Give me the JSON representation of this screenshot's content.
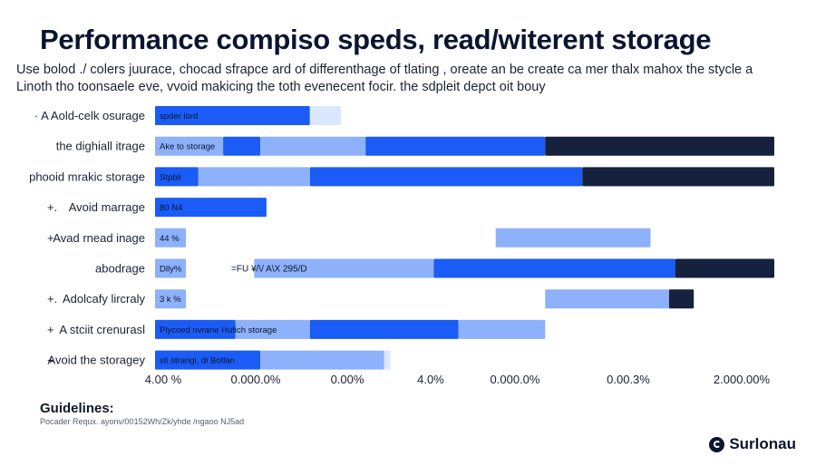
{
  "title": "Performance compiso speds, read/witerent storage",
  "subtitle_line1": "Use bolod ./ colers juurace, chocad sfrapce ard of differenthage of tlating , oreate an be create ca mer thalx mahox the stycle a",
  "subtitle_line2": "Linoth tho toonsaele eve, vvoid makicing the toth evenecent focir. the sdpleit depct oit bouy",
  "guidelines": {
    "title": "Guidelines:",
    "text": "Pocader Requx. ayonv/00152Wh/Zk/yhde /ngaoo NJ5ad"
  },
  "logo": {
    "text": "Surlonau"
  },
  "colors": {
    "blue": "#1a5cf5",
    "light": "#8db1fa",
    "dark": "#16213d",
    "fade": "#dbe7fd"
  },
  "chart_data": {
    "type": "bar",
    "orientation": "horizontal",
    "stacked": true,
    "x_tick_labels": [
      "4.00 %",
      "0.000.0%",
      "0.00%",
      "4.0%",
      "0.000.0%",
      "0.00.3%",
      "2.000.00%"
    ],
    "rows": [
      {
        "label": "· A Aold-celk osurage",
        "marker": "",
        "bar_label": "spder lord",
        "segments": [
          {
            "start": 0.0,
            "end": 0.25,
            "tone": "blue"
          },
          {
            "start": 0.25,
            "end": 0.3,
            "tone": "fade"
          }
        ]
      },
      {
        "label": "the dighiall itrage",
        "marker": "",
        "bar_label": "Ake to storage",
        "segments": [
          {
            "start": 0.0,
            "end": 0.11,
            "tone": "light"
          },
          {
            "start": 0.11,
            "end": 0.17,
            "tone": "blue"
          },
          {
            "start": 0.17,
            "end": 0.34,
            "tone": "light"
          },
          {
            "start": 0.34,
            "end": 0.63,
            "tone": "blue"
          },
          {
            "start": 0.63,
            "end": 1.0,
            "tone": "dark"
          }
        ]
      },
      {
        "label": "phooid mrakic storage",
        "marker": "",
        "bar_label": "Stpbli",
        "segments": [
          {
            "start": 0.0,
            "end": 0.07,
            "tone": "blue"
          },
          {
            "start": 0.07,
            "end": 0.25,
            "tone": "light"
          },
          {
            "start": 0.25,
            "end": 0.69,
            "tone": "blue"
          },
          {
            "start": 0.69,
            "end": 1.0,
            "tone": "dark"
          }
        ]
      },
      {
        "label": "Avoid marrage",
        "marker": "+.",
        "bar_label": "80 N4",
        "segments": [
          {
            "start": 0.0,
            "end": 0.18,
            "tone": "blue"
          }
        ]
      },
      {
        "label": "Avad rnead inage",
        "marker": "+",
        "bar_label": "44 %",
        "segments": [
          {
            "start": 0.0,
            "end": 0.05,
            "tone": "light"
          },
          {
            "start": 0.55,
            "end": 0.8,
            "tone": "light"
          }
        ]
      },
      {
        "label": "abodrage",
        "marker": "",
        "bar_label": "Dlly%",
        "inline_label": "=FU ¥/\\/ A\\X 295/D",
        "segments": [
          {
            "start": 0.0,
            "end": 0.05,
            "tone": "light"
          },
          {
            "start": 0.16,
            "end": 0.45,
            "tone": "light"
          },
          {
            "start": 0.45,
            "end": 0.84,
            "tone": "blue"
          },
          {
            "start": 0.84,
            "end": 1.0,
            "tone": "dark"
          }
        ]
      },
      {
        "label": "Adolcafy lircraly",
        "marker": "+.",
        "bar_label": "3 k %",
        "segments": [
          {
            "start": 0.0,
            "end": 0.05,
            "tone": "light"
          },
          {
            "start": 0.63,
            "end": 0.83,
            "tone": "light"
          },
          {
            "start": 0.83,
            "end": 0.87,
            "tone": "dark"
          }
        ]
      },
      {
        "label": "A stciit crenurasl",
        "marker": "+",
        "bar_label": "Plycoed nvrane  Hufich storage",
        "segments": [
          {
            "start": 0.0,
            "end": 0.13,
            "tone": "blue"
          },
          {
            "start": 0.13,
            "end": 0.25,
            "tone": "light"
          },
          {
            "start": 0.25,
            "end": 0.49,
            "tone": "blue"
          },
          {
            "start": 0.49,
            "end": 0.63,
            "tone": "light"
          }
        ]
      },
      {
        "label": "Avoid the storagey",
        "marker": "+",
        "bar_label": "sti strangl, di Botlan",
        "segments": [
          {
            "start": 0.0,
            "end": 0.17,
            "tone": "blue"
          },
          {
            "start": 0.17,
            "end": 0.37,
            "tone": "light"
          },
          {
            "start": 0.37,
            "end": 0.38,
            "tone": "fade"
          }
        ]
      }
    ]
  }
}
